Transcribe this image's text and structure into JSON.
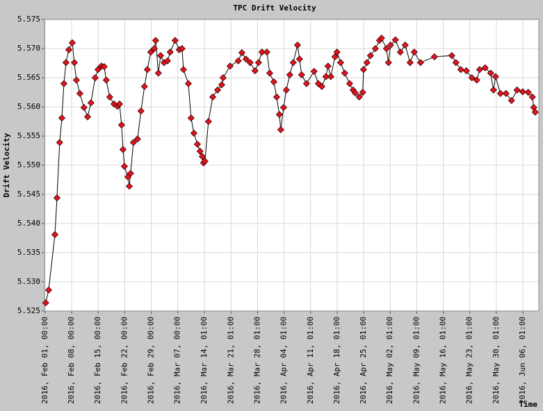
{
  "chart_data": {
    "type": "line",
    "title": "TPC Drift Velocity",
    "x_label": "Time",
    "y_label": "Drift Velocity",
    "grid": true,
    "color": "#e0141e",
    "line_color": "#000000",
    "xlim": [
      "2016-01-31T20:00",
      "2016-06-10T06:00"
    ],
    "ylim": [
      5.525,
      5.575
    ],
    "yticks": [
      5.525,
      {
        "value": 5.53,
        "label": "5.530"
      },
      5.535,
      {
        "value": 5.54,
        "label": "5.540"
      },
      5.545,
      {
        "value": 5.55,
        "label": "5.550"
      },
      5.555,
      {
        "value": 5.56,
        "label": "5.560"
      },
      5.565,
      {
        "value": 5.57,
        "label": "5.570"
      },
      5.575
    ],
    "xticks": [
      {
        "value": "2016-02-01T00:00",
        "label": "2016, Feb 01, 00:00"
      },
      {
        "value": "2016-02-08T00:00",
        "label": "2016, Feb 08, 00:00"
      },
      {
        "value": "2016-02-15T00:00",
        "label": "2016, Feb 15, 00:00"
      },
      {
        "value": "2016-02-22T00:00",
        "label": "2016, Feb 22, 00:00"
      },
      {
        "value": "2016-02-29T00:00",
        "label": "2016, Feb 29, 00:00"
      },
      {
        "value": "2016-03-07T00:00",
        "label": "2016, Mar 07, 00:00"
      },
      {
        "value": "2016-03-14T01:00",
        "label": "2016, Mar 14, 01:00"
      },
      {
        "value": "2016-03-21T01:00",
        "label": "2016, Mar 21, 01:00"
      },
      {
        "value": "2016-03-28T01:00",
        "label": "2016, Mar 28, 01:00"
      },
      {
        "value": "2016-04-04T01:00",
        "label": "2016, Apr 04, 01:00"
      },
      {
        "value": "2016-04-11T01:00",
        "label": "2016, Apr 11, 01:00"
      },
      {
        "value": "2016-04-18T01:00",
        "label": "2016, Apr 18, 01:00"
      },
      {
        "value": "2016-04-25T01:00",
        "label": "2016, Apr 25, 01:00"
      },
      {
        "value": "2016-05-02T01:00",
        "label": "2016, May 02, 01:00"
      },
      {
        "value": "2016-05-09T01:00",
        "label": "2016, May 09, 01:00"
      },
      {
        "value": "2016-05-16T01:00",
        "label": "2016, May 16, 01:00"
      },
      {
        "value": "2016-05-23T01:00",
        "label": "2016, May 23, 01:00"
      },
      {
        "value": "2016-05-30T01:00",
        "label": "2016, May 30, 01:00"
      },
      {
        "value": "2016-06-06T01:00",
        "label": "2016, Jun 06, 01:00"
      }
    ],
    "x": [
      "2016-02-01T04:00",
      "2016-02-01T22:00",
      "2016-02-03T14:00",
      "2016-02-04T03:00",
      "2016-02-04T20:00",
      "2016-02-05T10:00",
      "2016-02-05T23:00",
      "2016-02-06T12:00",
      "2016-02-07T06:00",
      "2016-02-08T04:00",
      "2016-02-08T17:00",
      "2016-02-09T06:00",
      "2016-02-10T04:00",
      "2016-02-11T06:00",
      "2016-02-12T05:00",
      "2016-02-13T02:00",
      "2016-02-14T05:00",
      "2016-02-14T23:00",
      "2016-02-15T20:00",
      "2016-02-16T14:00",
      "2016-02-17T03:00",
      "2016-02-18T01:00",
      "2016-02-19T04:00",
      "2016-02-20T02:00",
      "2016-02-20T15:00",
      "2016-02-21T04:00",
      "2016-02-21T13:00",
      "2016-02-21T22:00",
      "2016-02-22T20:00",
      "2016-02-23T05:00",
      "2016-02-23T13:00",
      "2016-02-24T07:00",
      "2016-02-25T09:00",
      "2016-02-26T07:00",
      "2016-02-27T05:00",
      "2016-02-27T23:00",
      "2016-02-28T21:00",
      "2016-02-29T19:00",
      "2016-03-01T04:00",
      "2016-03-01T21:00",
      "2016-03-02T11:00",
      "2016-03-03T09:00",
      "2016-03-04T07:00",
      "2016-03-05T00:00",
      "2016-03-06T07:00",
      "2016-03-07T09:00",
      "2016-03-08T03:00",
      "2016-03-08T12:00",
      "2016-03-09T19:00",
      "2016-03-10T12:00",
      "2016-03-11T06:00",
      "2016-03-12T04:00",
      "2016-03-12T21:00",
      "2016-03-13T11:00",
      "2016-03-13T19:00",
      "2016-03-14T04:00",
      "2016-03-15T02:00",
      "2016-03-16T05:00",
      "2016-03-17T12:00",
      "2016-03-18T14:00",
      "2016-03-18T23:00",
      "2016-03-20T19:00",
      "2016-03-22T23:00",
      "2016-03-23T22:00",
      "2016-03-25T00:00",
      "2016-03-26T02:00",
      "2016-03-27T09:00",
      "2016-03-28T07:00",
      "2016-03-29T05:00",
      "2016-03-30T12:00",
      "2016-03-31T06:00",
      "2016-04-01T08:00",
      "2016-04-02T02:00",
      "2016-04-02T19:00",
      "2016-04-03T04:00",
      "2016-04-03T22:00",
      "2016-04-04T15:00",
      "2016-04-05T13:00",
      "2016-04-06T11:00",
      "2016-04-07T14:00",
      "2016-04-08T03:00",
      "2016-04-08T16:00",
      "2016-04-09T23:00",
      "2016-04-11T23:00",
      "2016-04-13T02:00",
      "2016-04-14T00:00",
      "2016-04-15T02:00",
      "2016-04-15T15:00",
      "2016-04-16T09:00",
      "2016-04-17T11:00",
      "2016-04-18T00:00",
      "2016-04-18T23:00",
      "2016-04-20T01:00",
      "2016-04-21T08:00",
      "2016-04-22T06:00",
      "2016-04-22T19:00",
      "2016-04-23T21:00",
      "2016-04-24T19:00",
      "2016-04-25T00:00",
      "2016-04-25T22:00",
      "2016-04-26T20:00",
      "2016-04-28T03:00",
      "2016-04-29T05:00",
      "2016-04-29T18:00",
      "2016-05-01T01:00",
      "2016-05-01T14:00",
      "2016-05-02T03:00",
      "2016-05-03T10:00",
      "2016-05-04T17:00",
      "2016-05-06T00:00",
      "2016-05-07T07:00",
      "2016-05-08T09:00",
      "2016-05-10T01:00",
      "2016-05-13T17:00",
      "2016-05-18T07:00",
      "2016-05-19T09:00",
      "2016-05-20T16:00",
      "2016-05-22T03:00",
      "2016-05-23T14:00",
      "2016-05-24T21:00",
      "2016-05-25T15:00",
      "2016-05-27T02:00",
      "2016-05-28T13:00",
      "2016-05-29T07:00",
      "2016-05-29T20:00",
      "2016-05-31T03:00",
      "2016-06-01T14:00",
      "2016-06-03T01:00",
      "2016-06-04T12:00",
      "2016-06-06T00:00",
      "2016-06-07T11:00",
      "2016-06-08T13:00",
      "2016-06-08T22:00",
      "2016-06-09T07:00"
    ],
    "values": [
      5.5264,
      5.5286,
      5.5381,
      5.5444,
      5.5539,
      5.5581,
      5.564,
      5.5676,
      5.5698,
      5.571,
      5.5676,
      5.5646,
      5.5623,
      5.5599,
      5.5583,
      5.5607,
      5.565,
      5.5664,
      5.567,
      5.5669,
      5.5646,
      5.5617,
      5.5605,
      5.5601,
      5.5605,
      5.5569,
      5.5527,
      5.5498,
      5.548,
      5.5464,
      5.5486,
      5.5539,
      5.5545,
      5.5593,
      5.5635,
      5.5664,
      5.5694,
      5.57,
      5.5714,
      5.5658,
      5.5688,
      5.5676,
      5.5679,
      5.5694,
      5.5714,
      5.5698,
      5.57,
      5.5664,
      5.564,
      5.5581,
      5.5555,
      5.5536,
      5.5524,
      5.5515,
      5.5504,
      5.5507,
      5.5575,
      5.5617,
      5.5629,
      5.5638,
      5.565,
      5.567,
      5.5679,
      5.5693,
      5.5682,
      5.5676,
      5.5662,
      5.5676,
      5.5694,
      5.5694,
      5.5658,
      5.5643,
      5.5617,
      5.5587,
      5.5561,
      5.5599,
      5.5629,
      5.5655,
      5.5676,
      5.5706,
      5.5682,
      5.5655,
      5.564,
      5.5661,
      5.564,
      5.5635,
      5.5652,
      5.567,
      5.5652,
      5.5686,
      5.5694,
      5.5676,
      5.5658,
      5.564,
      5.5629,
      5.5624,
      5.5617,
      5.5625,
      5.5664,
      5.5676,
      5.5688,
      5.57,
      5.5714,
      5.5718,
      5.57,
      5.5676,
      5.5706,
      5.5715,
      5.5694,
      5.5706,
      5.5676,
      5.5694,
      5.5676,
      5.5686,
      5.5688,
      5.5676,
      5.5664,
      5.5662,
      5.565,
      5.5646,
      5.5664,
      5.5667,
      5.5658,
      5.5629,
      5.5652,
      5.5623,
      5.5623,
      5.5611,
      5.5629,
      5.5626,
      5.5625,
      5.5617,
      5.5599,
      5.5591
    ]
  }
}
